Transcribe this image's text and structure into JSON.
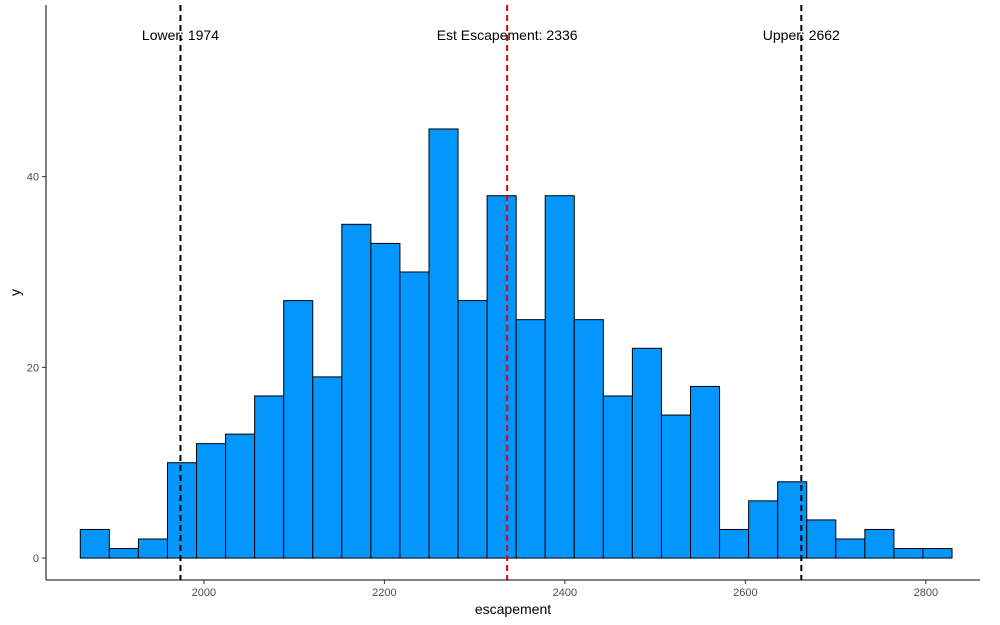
{
  "chart_data": {
    "type": "bar",
    "subtype": "histogram",
    "title": "",
    "xlabel": "escapement",
    "ylabel": "y",
    "bin_width": 32.2,
    "bin_start": 1863,
    "counts": [
      3,
      1,
      2,
      10,
      12,
      13,
      17,
      27,
      19,
      35,
      33,
      30,
      45,
      27,
      38,
      25,
      38,
      25,
      17,
      22,
      15,
      18,
      3,
      6,
      8,
      4,
      2,
      3,
      1,
      1
    ],
    "xlim": [
      1825,
      2860
    ],
    "ylim": [
      -2.3,
      58
    ],
    "x_ticks": [
      2000,
      2200,
      2400,
      2600,
      2800
    ],
    "y_ticks": [
      0,
      20,
      40
    ],
    "grid": false,
    "bar_fill": "#0496FF",
    "bar_stroke": "#000000",
    "vlines": [
      {
        "x": 1974,
        "color": "#000000",
        "style": "dashed",
        "label": "Lower: 1974"
      },
      {
        "x": 2336,
        "color": "#E00000",
        "style": "dashed",
        "label": "Est Escapement: 2336"
      },
      {
        "x": 2662,
        "color": "#000000",
        "style": "dashed",
        "label": "Upper: 2662"
      }
    ]
  }
}
